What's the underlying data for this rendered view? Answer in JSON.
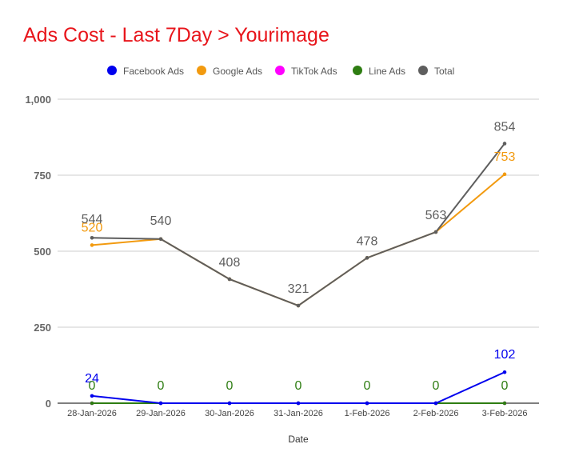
{
  "chart_data": {
    "type": "line",
    "title": "Ads Cost - Last 7Day > Yourimage",
    "xlabel": "Date",
    "ylabel": "",
    "ylim": [
      0,
      1000
    ],
    "y_ticks": [
      "0",
      "250",
      "500",
      "750",
      "1,000"
    ],
    "y_tick_values": [
      0,
      250,
      500,
      750,
      1000
    ],
    "categories": [
      "28-Jan-2026",
      "29-Jan-2026",
      "30-Jan-2026",
      "31-Jan-2026",
      "1-Feb-2026",
      "2-Feb-2026",
      "3-Feb-2026"
    ],
    "legend_position": "top",
    "grid": true,
    "series": [
      {
        "name": "Facebook Ads",
        "color": "#0000ee",
        "values": [
          24,
          0,
          0,
          0,
          0,
          0,
          102
        ],
        "labels": [
          "24",
          null,
          null,
          null,
          null,
          null,
          "102"
        ]
      },
      {
        "name": "Google Ads",
        "color": "#f29a0f",
        "values": [
          520,
          540,
          408,
          321,
          478,
          563,
          753
        ],
        "labels": [
          "520",
          null,
          null,
          null,
          null,
          null,
          "753"
        ]
      },
      {
        "name": "TikTok Ads",
        "color": "#ff00ff",
        "values": [
          0,
          0,
          0,
          0,
          0,
          0,
          0
        ],
        "labels": [
          null,
          null,
          null,
          null,
          null,
          null,
          null
        ]
      },
      {
        "name": "Line Ads",
        "color": "#2e7d12",
        "values": [
          0,
          0,
          0,
          0,
          0,
          0,
          0
        ],
        "labels": [
          "0",
          "0",
          "0",
          "0",
          "0",
          "0",
          "0"
        ]
      },
      {
        "name": "Total",
        "color": "#5e5e5e",
        "values": [
          544,
          540,
          408,
          321,
          478,
          563,
          854
        ],
        "labels": [
          "544",
          "540",
          "408",
          "321",
          "478",
          "563",
          "854"
        ]
      }
    ]
  }
}
